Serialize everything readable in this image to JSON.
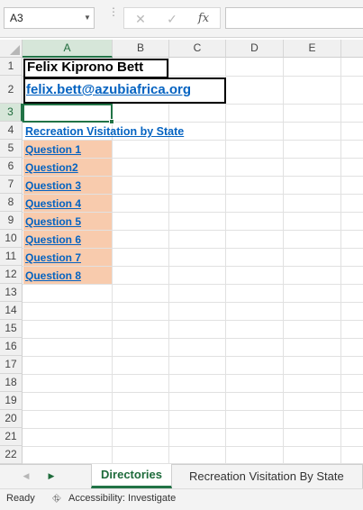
{
  "formula_bar": {
    "name_box": "A3",
    "cancel_icon": "✕",
    "enter_icon": "✓",
    "function_icon": "fx",
    "formula_value": ""
  },
  "columns": [
    "A",
    "B",
    "C",
    "D",
    "E"
  ],
  "rows": [
    "1",
    "2",
    "3",
    "4",
    "5",
    "6",
    "7",
    "8",
    "9",
    "10",
    "11",
    "12",
    "13",
    "14",
    "15",
    "16",
    "17",
    "18",
    "19",
    "20",
    "21",
    "22"
  ],
  "cells": {
    "a1": "Felix Kiprono Bett",
    "a2": "felix.bett@azubiafrica.org",
    "a4": "Recreation Visitation by State",
    "questions": [
      "Question 1",
      "Question2",
      "Question 3",
      "Question 4",
      "Question 5",
      "Question 6",
      "Question 7",
      "Question 8"
    ]
  },
  "sheet_tabs": {
    "active": "Directories",
    "other": "Recreation Visitation By State"
  },
  "status_bar": {
    "ready": "Ready",
    "accessibility": "Accessibility: Investigate"
  },
  "colors": {
    "accent": "#217346",
    "link": "#0563c1",
    "question_fill": "#f8cbad"
  }
}
